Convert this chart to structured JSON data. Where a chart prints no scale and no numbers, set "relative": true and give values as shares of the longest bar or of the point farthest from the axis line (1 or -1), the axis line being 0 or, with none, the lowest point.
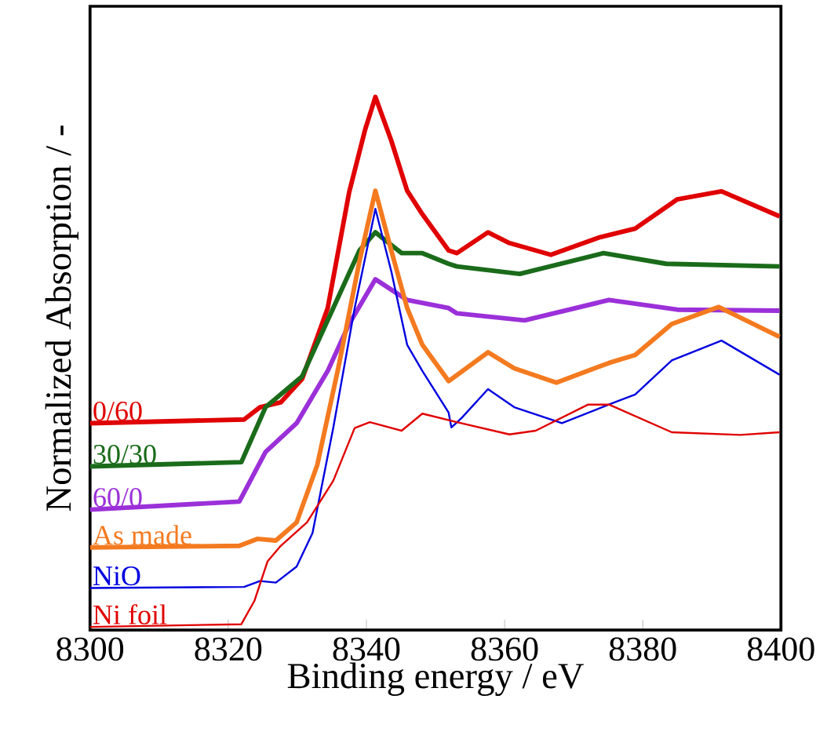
{
  "chart_data": {
    "type": "line",
    "xlabel": "Binding energy / eV",
    "ylabel": "Normalized Absorption / -",
    "relative": true,
    "xlim": [
      8300,
      8400
    ],
    "xticks": [
      8300,
      8320,
      8340,
      8360,
      8380,
      8400
    ],
    "marker": "none",
    "line_style": "solid",
    "series": [
      {
        "name": "0/60",
        "color": "#e00000",
        "x": [
          8300,
          8322.3,
          8324.6,
          8327.6,
          8330.7,
          8334.4,
          8337.5,
          8339.8,
          8341.3,
          8343.6,
          8345.9,
          8348.1,
          8351.9,
          8353.1,
          8357.6,
          8360.7,
          8366.7,
          8373.6,
          8378.9,
          8385,
          8391.4,
          8399.8
        ],
        "values": [
          0.388,
          0.395,
          0.418,
          0.427,
          0.471,
          0.604,
          0.821,
          0.938,
          1.0,
          0.918,
          0.824,
          0.78,
          0.712,
          0.707,
          0.746,
          0.726,
          0.704,
          0.736,
          0.753,
          0.808,
          0.823,
          0.776
        ]
      },
      {
        "name": "30/30",
        "color": "#1a6b1a",
        "x": [
          8300,
          8321.9,
          8325.4,
          8330.7,
          8335.2,
          8339,
          8341.3,
          8345.1,
          8348.1,
          8351.9,
          8353.1,
          8362.2,
          8374.3,
          8383.4,
          8399.8
        ],
        "values": [
          0.307,
          0.315,
          0.418,
          0.476,
          0.604,
          0.712,
          0.746,
          0.707,
          0.707,
          0.687,
          0.682,
          0.668,
          0.707,
          0.687,
          0.682
        ]
      },
      {
        "name": "60/0",
        "color": "#9b30d9",
        "x": [
          8300,
          8321.6,
          8325.4,
          8329.9,
          8334.4,
          8337.5,
          8341.3,
          8345.9,
          8351.9,
          8353.1,
          8362.9,
          8375.1,
          8385,
          8399.8
        ],
        "values": [
          0.226,
          0.241,
          0.334,
          0.388,
          0.486,
          0.574,
          0.658,
          0.619,
          0.604,
          0.594,
          0.581,
          0.619,
          0.601,
          0.599
        ]
      },
      {
        "name": "As made",
        "color": "#f47a20",
        "x": [
          8300,
          8321.6,
          8324.2,
          8326.9,
          8329.9,
          8332.9,
          8336,
          8339,
          8341.3,
          8343.6,
          8345.9,
          8348.1,
          8351.9,
          8357.6,
          8361.4,
          8367.5,
          8375.1,
          8378.9,
          8384.2,
          8391,
          8399.8
        ],
        "values": [
          0.155,
          0.158,
          0.171,
          0.168,
          0.202,
          0.31,
          0.496,
          0.692,
          0.824,
          0.712,
          0.604,
          0.535,
          0.467,
          0.521,
          0.491,
          0.464,
          0.501,
          0.516,
          0.574,
          0.606,
          0.55
        ]
      },
      {
        "name": "NiO",
        "color": "#0000e0",
        "x": [
          8300,
          8322.3,
          8324.6,
          8326.9,
          8329.9,
          8332.2,
          8335.2,
          8338.3,
          8341.3,
          8343.6,
          8345.9,
          8348.1,
          8351.9,
          8352.3,
          8353.8,
          8357.6,
          8361.4,
          8368.3,
          8375.1,
          8378.9,
          8384.2,
          8391.4,
          8399.8
        ],
        "values": [
          0.079,
          0.081,
          0.092,
          0.089,
          0.119,
          0.182,
          0.379,
          0.604,
          0.79,
          0.673,
          0.535,
          0.486,
          0.408,
          0.38,
          0.398,
          0.452,
          0.418,
          0.388,
          0.423,
          0.442,
          0.506,
          0.543,
          0.479
        ]
      },
      {
        "name": "Ni foil",
        "color": "#e00000",
        "x": [
          8300,
          8321.9,
          8323.8,
          8325.7,
          8327.6,
          8331.4,
          8335.2,
          8338.3,
          8340.5,
          8345.1,
          8348.1,
          8353.1,
          8360.7,
          8364.5,
          8372.1,
          8375.1,
          8384.2,
          8394.1,
          8399.8
        ],
        "values": [
          0.006,
          0.011,
          0.055,
          0.129,
          0.158,
          0.202,
          0.28,
          0.379,
          0.39,
          0.374,
          0.406,
          0.39,
          0.367,
          0.374,
          0.423,
          0.423,
          0.371,
          0.366,
          0.371
        ]
      }
    ]
  }
}
